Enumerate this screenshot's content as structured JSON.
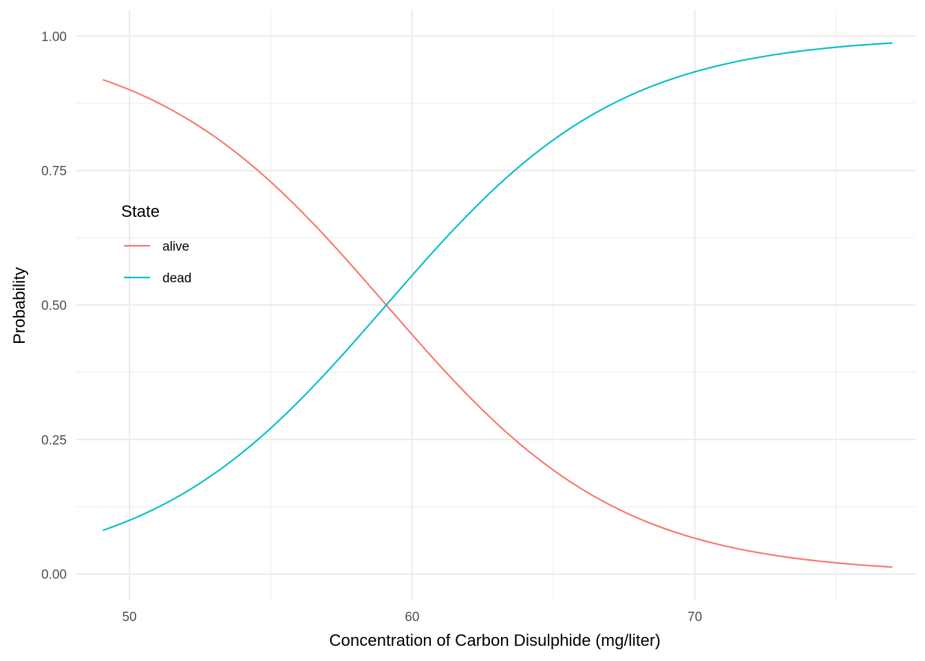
{
  "chart_data": {
    "type": "line",
    "title": "",
    "xlabel": "Concentration of Carbon Disulphide (mg/liter)",
    "ylabel": "Probability",
    "xlim": [
      48.1,
      77.8
    ],
    "ylim": [
      -0.049,
      1.049
    ],
    "x_major_ticks": [
      50,
      60,
      70
    ],
    "x_major_tick_labels": [
      "50",
      "60",
      "70"
    ],
    "x_minor_ticks": [
      55,
      65,
      75
    ],
    "y_major_ticks": [
      0,
      0.25,
      0.5,
      0.75,
      1
    ],
    "y_major_tick_labels": [
      "0.00",
      "0.25",
      "0.50",
      "0.75",
      "1.00"
    ],
    "y_minor_ticks": [
      0.125,
      0.375,
      0.625,
      0.875
    ],
    "grid": true,
    "legend": {
      "title": "State",
      "placement": "left-inside"
    },
    "x": [
      49.06,
      50,
      51,
      52,
      53,
      54,
      55,
      56,
      57,
      58,
      59,
      59.4,
      60,
      61,
      62,
      63,
      64,
      65,
      66,
      67,
      68,
      69,
      70,
      71,
      72,
      73,
      74,
      75,
      76,
      76.99
    ],
    "series": [
      {
        "name": "alive",
        "color": "#F8766D",
        "values": [
          0.93,
          0.912,
          0.889,
          0.86,
          0.822,
          0.775,
          0.719,
          0.655,
          0.584,
          0.508,
          0.434,
          0.5,
          0.46,
          0.39,
          0.323,
          0.262,
          0.209,
          0.2,
          0.162,
          0.129,
          0.102,
          0.081,
          0.066,
          0.053,
          0.044,
          0.036,
          0.029,
          0.023,
          0.018,
          0.012
        ]
      },
      {
        "name": "dead",
        "color": "#00BFC4",
        "values": [
          0.07,
          0.088,
          0.111,
          0.14,
          0.178,
          0.225,
          0.281,
          0.345,
          0.416,
          0.492,
          0.566,
          0.5,
          0.54,
          0.61,
          0.677,
          0.738,
          0.791,
          0.8,
          0.838,
          0.871,
          0.898,
          0.919,
          0.934,
          0.947,
          0.956,
          0.964,
          0.971,
          0.977,
          0.982,
          0.988
        ]
      }
    ]
  }
}
